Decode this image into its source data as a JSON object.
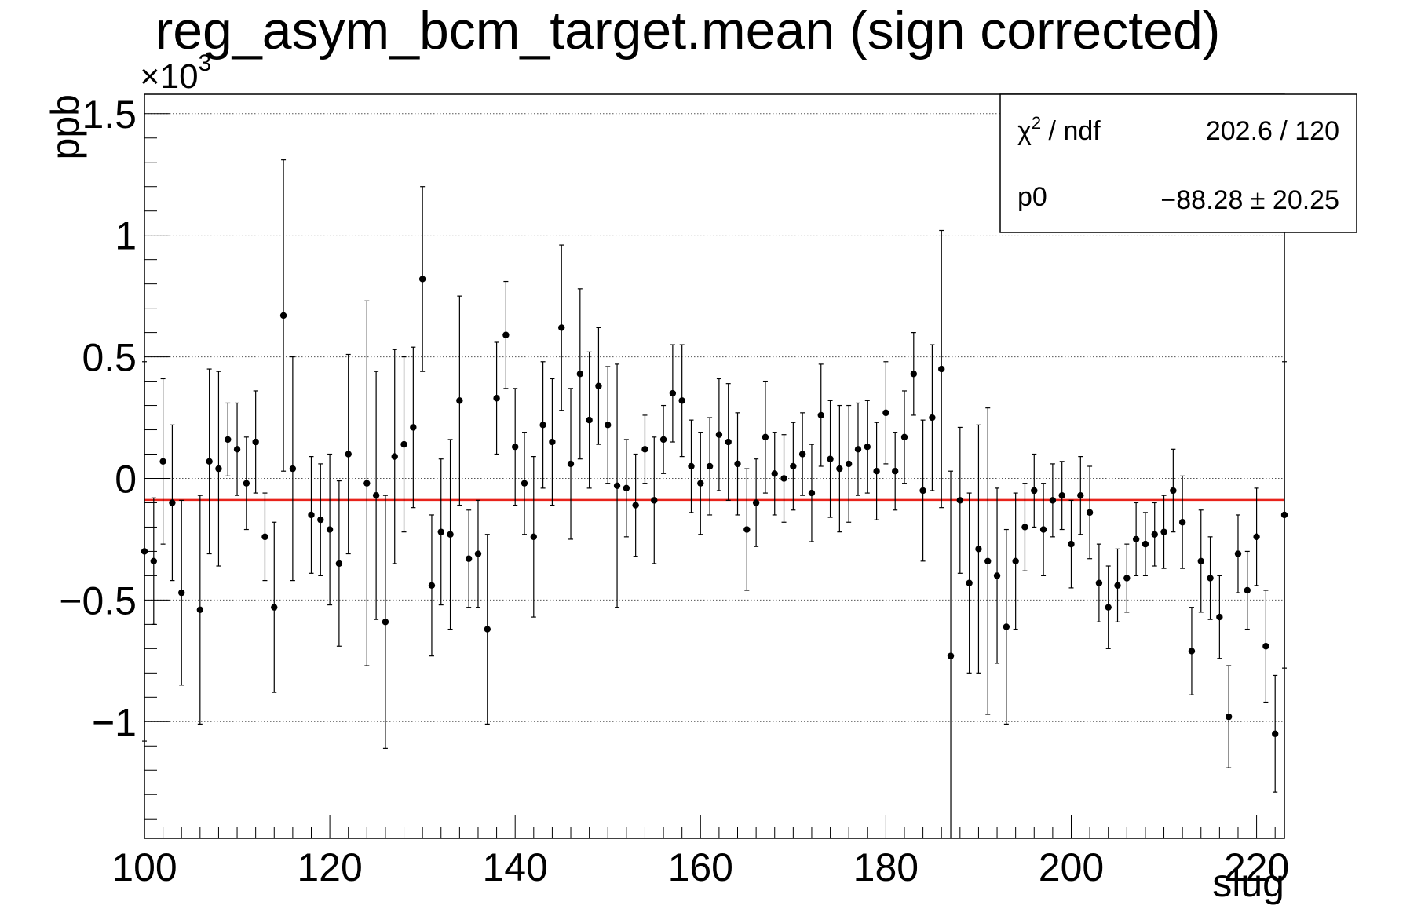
{
  "chart_data": {
    "type": "scatter",
    "title": "reg_asym_bcm_target.mean (sign corrected)",
    "xlabel": "slug",
    "ylabel": "ppb",
    "y_multiplier_label": "×10",
    "y_multiplier_exp": "3",
    "xlim": [
      100,
      223
    ],
    "ylim": [
      -1.48,
      1.58
    ],
    "x_ticks": [
      100,
      120,
      140,
      160,
      180,
      200,
      220
    ],
    "y_ticks": [
      {
        "v": -1,
        "label": "−1"
      },
      {
        "v": -0.5,
        "label": "−0.5"
      },
      {
        "v": 0,
        "label": "0"
      },
      {
        "v": 0.5,
        "label": "0.5"
      },
      {
        "v": 1,
        "label": "1"
      },
      {
        "v": 1.5,
        "label": "1.5"
      }
    ],
    "grid": true,
    "fit_value": -0.08828,
    "fit_color": "#e8231b",
    "point_color": "#000000",
    "stats_box": {
      "position": "top-right",
      "rows": [
        {
          "label": "χ",
          "sup": "2",
          "label_rest": " / ndf",
          "value": "202.6 / 120"
        },
        {
          "label": "p0",
          "sup": "",
          "label_rest": "",
          "value": "−88.28 ± 20.25"
        }
      ]
    },
    "points": [
      {
        "x": 100,
        "y": -0.3,
        "err": 0.78
      },
      {
        "x": 101,
        "y": -0.34,
        "err": 0.26
      },
      {
        "x": 102,
        "y": 0.07,
        "err": 0.34
      },
      {
        "x": 103,
        "y": -0.1,
        "err": 0.32
      },
      {
        "x": 104,
        "y": -0.47,
        "err": 0.38
      },
      {
        "x": 106,
        "y": -0.54,
        "err": 0.47
      },
      {
        "x": 107,
        "y": 0.07,
        "err": 0.38
      },
      {
        "x": 108,
        "y": 0.04,
        "err": 0.4
      },
      {
        "x": 109,
        "y": 0.16,
        "err": 0.15
      },
      {
        "x": 110,
        "y": 0.12,
        "err": 0.19
      },
      {
        "x": 111,
        "y": -0.02,
        "err": 0.19
      },
      {
        "x": 112,
        "y": 0.15,
        "err": 0.21
      },
      {
        "x": 113,
        "y": -0.24,
        "err": 0.18
      },
      {
        "x": 114,
        "y": -0.53,
        "err": 0.35
      },
      {
        "x": 115,
        "y": 0.67,
        "err": 0.64
      },
      {
        "x": 116,
        "y": 0.04,
        "err": 0.46
      },
      {
        "x": 118,
        "y": -0.15,
        "err": 0.24
      },
      {
        "x": 119,
        "y": -0.17,
        "err": 0.23
      },
      {
        "x": 120,
        "y": -0.21,
        "err": 0.31
      },
      {
        "x": 121,
        "y": -0.35,
        "err": 0.34
      },
      {
        "x": 122,
        "y": 0.1,
        "err": 0.41
      },
      {
        "x": 124,
        "y": -0.02,
        "err": 0.75
      },
      {
        "x": 125,
        "y": -0.07,
        "err": 0.51
      },
      {
        "x": 126,
        "y": -0.59,
        "err": 0.52
      },
      {
        "x": 127,
        "y": 0.09,
        "err": 0.44
      },
      {
        "x": 128,
        "y": 0.14,
        "err": 0.36
      },
      {
        "x": 129,
        "y": 0.21,
        "err": 0.33
      },
      {
        "x": 130,
        "y": 0.82,
        "err": 0.38
      },
      {
        "x": 131,
        "y": -0.44,
        "err": 0.29
      },
      {
        "x": 132,
        "y": -0.22,
        "err": 0.3
      },
      {
        "x": 133,
        "y": -0.23,
        "err": 0.39
      },
      {
        "x": 134,
        "y": 0.32,
        "err": 0.43
      },
      {
        "x": 135,
        "y": -0.33,
        "err": 0.2
      },
      {
        "x": 136,
        "y": -0.31,
        "err": 0.22
      },
      {
        "x": 137,
        "y": -0.62,
        "err": 0.39
      },
      {
        "x": 138,
        "y": 0.33,
        "err": 0.23
      },
      {
        "x": 139,
        "y": 0.59,
        "err": 0.22
      },
      {
        "x": 140,
        "y": 0.13,
        "err": 0.24
      },
      {
        "x": 141,
        "y": -0.02,
        "err": 0.21
      },
      {
        "x": 142,
        "y": -0.24,
        "err": 0.33
      },
      {
        "x": 143,
        "y": 0.22,
        "err": 0.26
      },
      {
        "x": 144,
        "y": 0.15,
        "err": 0.26
      },
      {
        "x": 145,
        "y": 0.62,
        "err": 0.34
      },
      {
        "x": 146,
        "y": 0.06,
        "err": 0.31
      },
      {
        "x": 147,
        "y": 0.43,
        "err": 0.35
      },
      {
        "x": 148,
        "y": 0.24,
        "err": 0.28
      },
      {
        "x": 149,
        "y": 0.38,
        "err": 0.24
      },
      {
        "x": 150,
        "y": 0.22,
        "err": 0.24
      },
      {
        "x": 151,
        "y": -0.03,
        "err": 0.5
      },
      {
        "x": 152,
        "y": -0.04,
        "err": 0.2
      },
      {
        "x": 153,
        "y": -0.11,
        "err": 0.21
      },
      {
        "x": 154,
        "y": 0.12,
        "err": 0.14
      },
      {
        "x": 155,
        "y": -0.09,
        "err": 0.26
      },
      {
        "x": 156,
        "y": 0.16,
        "err": 0.14
      },
      {
        "x": 157,
        "y": 0.35,
        "err": 0.2
      },
      {
        "x": 158,
        "y": 0.32,
        "err": 0.23
      },
      {
        "x": 159,
        "y": 0.05,
        "err": 0.19
      },
      {
        "x": 160,
        "y": -0.02,
        "err": 0.21
      },
      {
        "x": 161,
        "y": 0.05,
        "err": 0.2
      },
      {
        "x": 162,
        "y": 0.18,
        "err": 0.23
      },
      {
        "x": 163,
        "y": 0.15,
        "err": 0.24
      },
      {
        "x": 164,
        "y": 0.06,
        "err": 0.21
      },
      {
        "x": 165,
        "y": -0.21,
        "err": 0.25
      },
      {
        "x": 166,
        "y": -0.1,
        "err": 0.18
      },
      {
        "x": 167,
        "y": 0.17,
        "err": 0.23
      },
      {
        "x": 168,
        "y": 0.02,
        "err": 0.17
      },
      {
        "x": 169,
        "y": 0.0,
        "err": 0.18
      },
      {
        "x": 170,
        "y": 0.05,
        "err": 0.18
      },
      {
        "x": 171,
        "y": 0.1,
        "err": 0.17
      },
      {
        "x": 172,
        "y": -0.06,
        "err": 0.2
      },
      {
        "x": 173,
        "y": 0.26,
        "err": 0.21
      },
      {
        "x": 174,
        "y": 0.08,
        "err": 0.24
      },
      {
        "x": 175,
        "y": 0.04,
        "err": 0.26
      },
      {
        "x": 176,
        "y": 0.06,
        "err": 0.24
      },
      {
        "x": 177,
        "y": 0.12,
        "err": 0.19
      },
      {
        "x": 178,
        "y": 0.13,
        "err": 0.19
      },
      {
        "x": 179,
        "y": 0.03,
        "err": 0.2
      },
      {
        "x": 180,
        "y": 0.27,
        "err": 0.21
      },
      {
        "x": 181,
        "y": 0.03,
        "err": 0.16
      },
      {
        "x": 182,
        "y": 0.17,
        "err": 0.19
      },
      {
        "x": 183,
        "y": 0.43,
        "err": 0.17
      },
      {
        "x": 184,
        "y": -0.05,
        "err": 0.29
      },
      {
        "x": 185,
        "y": 0.25,
        "err": 0.3
      },
      {
        "x": 186,
        "y": 0.45,
        "err": 0.57
      },
      {
        "x": 187,
        "y": -0.73,
        "err": 0.76
      },
      {
        "x": 188,
        "y": -0.09,
        "err": 0.3
      },
      {
        "x": 189,
        "y": -0.43,
        "err": 0.37
      },
      {
        "x": 190,
        "y": -0.29,
        "err": 0.51
      },
      {
        "x": 191,
        "y": -0.34,
        "err": 0.63
      },
      {
        "x": 192,
        "y": -0.4,
        "err": 0.36
      },
      {
        "x": 193,
        "y": -0.61,
        "err": 0.4
      },
      {
        "x": 194,
        "y": -0.34,
        "err": 0.28
      },
      {
        "x": 195,
        "y": -0.2,
        "err": 0.18
      },
      {
        "x": 196,
        "y": -0.05,
        "err": 0.15
      },
      {
        "x": 197,
        "y": -0.21,
        "err": 0.19
      },
      {
        "x": 198,
        "y": -0.09,
        "err": 0.15
      },
      {
        "x": 199,
        "y": -0.07,
        "err": 0.14
      },
      {
        "x": 200,
        "y": -0.27,
        "err": 0.18
      },
      {
        "x": 201,
        "y": -0.07,
        "err": 0.16
      },
      {
        "x": 202,
        "y": -0.14,
        "err": 0.19
      },
      {
        "x": 203,
        "y": -0.43,
        "err": 0.16
      },
      {
        "x": 204,
        "y": -0.53,
        "err": 0.17
      },
      {
        "x": 205,
        "y": -0.44,
        "err": 0.15
      },
      {
        "x": 206,
        "y": -0.41,
        "err": 0.14
      },
      {
        "x": 207,
        "y": -0.25,
        "err": 0.15
      },
      {
        "x": 208,
        "y": -0.27,
        "err": 0.13
      },
      {
        "x": 209,
        "y": -0.23,
        "err": 0.13
      },
      {
        "x": 210,
        "y": -0.22,
        "err": 0.15
      },
      {
        "x": 211,
        "y": -0.05,
        "err": 0.17
      },
      {
        "x": 212,
        "y": -0.18,
        "err": 0.19
      },
      {
        "x": 213,
        "y": -0.71,
        "err": 0.18
      },
      {
        "x": 214,
        "y": -0.34,
        "err": 0.21
      },
      {
        "x": 215,
        "y": -0.41,
        "err": 0.17
      },
      {
        "x": 216,
        "y": -0.57,
        "err": 0.17
      },
      {
        "x": 217,
        "y": -0.98,
        "err": 0.21
      },
      {
        "x": 218,
        "y": -0.31,
        "err": 0.16
      },
      {
        "x": 219,
        "y": -0.46,
        "err": 0.16
      },
      {
        "x": 220,
        "y": -0.24,
        "err": 0.2
      },
      {
        "x": 221,
        "y": -0.69,
        "err": 0.23
      },
      {
        "x": 222,
        "y": -1.05,
        "err": 0.24
      },
      {
        "x": 223,
        "y": -0.15,
        "err": 0.63
      }
    ]
  }
}
